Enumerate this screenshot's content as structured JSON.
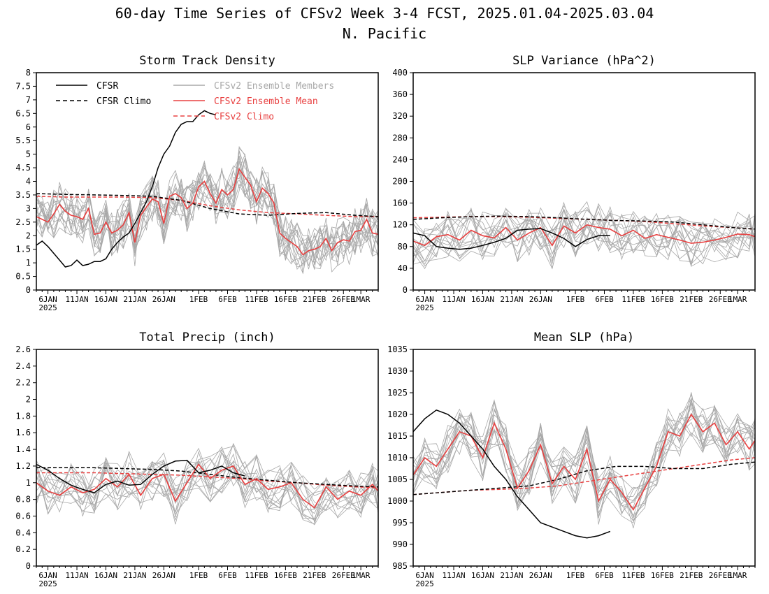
{
  "figure": {
    "title": "60-day Time Series of CFSv2 Week 3-4 FCST, 2025.01.04-2025.03.04",
    "subtitle": "N. Pacific"
  },
  "colors": {
    "cfsr": "#000000",
    "cfsr_climo": "#000000",
    "members": "#a8a8a8",
    "ens_mean": "#e84040",
    "cfsv2_climo": "#e84040"
  },
  "legend": {
    "placement": "top-left of Storm Track Density panel",
    "items": [
      {
        "label": "CFSR",
        "style": "solid",
        "color": "#000000"
      },
      {
        "label": "CFSR Climo",
        "style": "dashed",
        "color": "#000000"
      },
      {
        "label": "CFSv2 Ensemble Members",
        "style": "solid",
        "color": "#a8a8a8"
      },
      {
        "label": "CFSv2 Ensemble Mean",
        "style": "solid",
        "color": "#e84040"
      },
      {
        "label": "CFSv2 Climo",
        "style": "dashed",
        "color": "#e84040"
      }
    ]
  },
  "x_axis": {
    "year_label": "2025",
    "tick_labels": [
      "6JAN",
      "11JAN",
      "16JAN",
      "21JAN",
      "26JAN",
      "1FEB",
      "6FEB",
      "11FEB",
      "16FEB",
      "21FEB",
      "26FEB",
      "1MAR"
    ],
    "tick_days": [
      2,
      7,
      12,
      17,
      22,
      28,
      33,
      38,
      43,
      48,
      53,
      56
    ]
  },
  "chart_data": [
    {
      "type": "line",
      "title": "Storm Track Density",
      "ylim": [
        0,
        8
      ],
      "yticks": [
        "0",
        "0.5",
        "1",
        "1.5",
        "2",
        "2.5",
        "3",
        "3.5",
        "4",
        "4.5",
        "5",
        "5.5",
        "6",
        "6.5",
        "7",
        "7.5",
        "8"
      ],
      "xlim": [
        0,
        59
      ],
      "series": [
        {
          "name": "CFSR",
          "x": [
            0,
            1,
            2,
            3,
            4,
            5,
            6,
            7,
            8,
            9,
            10,
            11,
            12,
            13,
            14,
            15,
            16,
            17,
            18,
            19,
            20,
            21,
            22,
            23,
            24,
            25,
            26,
            27,
            28,
            29,
            30,
            31
          ],
          "y": [
            1.65,
            1.8,
            1.6,
            1.35,
            1.1,
            0.85,
            0.9,
            1.1,
            0.9,
            0.95,
            1.05,
            1.05,
            1.15,
            1.5,
            1.75,
            1.95,
            2.1,
            2.45,
            2.85,
            3.25,
            3.8,
            4.5,
            5.0,
            5.3,
            5.8,
            6.1,
            6.2,
            6.2,
            6.45,
            6.6,
            6.5,
            6.45
          ]
        },
        {
          "name": "CFSR Climo",
          "x": [
            0,
            5,
            10,
            15,
            20,
            25,
            30,
            35,
            40,
            45,
            50,
            55,
            59
          ],
          "y": [
            3.55,
            3.52,
            3.5,
            3.48,
            3.45,
            3.3,
            3.0,
            2.8,
            2.75,
            2.82,
            2.85,
            2.75,
            2.7
          ]
        },
        {
          "name": "CFSv2 Ensemble Mean",
          "x": [
            0,
            1,
            2,
            3,
            4,
            5,
            6,
            7,
            8,
            9,
            10,
            11,
            12,
            13,
            14,
            15,
            16,
            17,
            18,
            19,
            20,
            21,
            22,
            23,
            24,
            25,
            26,
            27,
            28,
            29,
            30,
            31,
            32,
            33,
            34,
            35,
            36,
            37,
            38,
            39,
            40,
            41,
            42,
            43,
            44,
            45,
            46,
            47,
            48,
            49,
            50,
            51,
            52,
            53,
            54,
            55,
            56,
            57,
            58,
            59
          ],
          "y": [
            2.7,
            2.6,
            2.5,
            2.8,
            3.15,
            2.9,
            2.75,
            2.7,
            2.6,
            3.0,
            2.05,
            2.1,
            2.5,
            2.1,
            2.2,
            2.4,
            2.85,
            1.75,
            2.75,
            3.05,
            3.35,
            3.25,
            2.45,
            3.45,
            3.55,
            3.4,
            3.0,
            3.2,
            3.8,
            4.0,
            3.55,
            3.2,
            3.7,
            3.5,
            3.7,
            4.45,
            4.15,
            3.85,
            3.25,
            3.75,
            3.55,
            3.2,
            2.1,
            1.9,
            1.75,
            1.6,
            1.3,
            1.45,
            1.5,
            1.6,
            1.9,
            1.45,
            1.75,
            1.85,
            1.8,
            2.15,
            2.2,
            2.6,
            2.1,
            2.05
          ]
        },
        {
          "name": "CFSv2 Climo",
          "x": [
            0,
            5,
            10,
            15,
            20,
            25,
            30,
            35,
            40,
            45,
            50,
            55,
            59
          ],
          "y": [
            3.45,
            3.42,
            3.42,
            3.42,
            3.4,
            3.3,
            3.1,
            2.95,
            2.85,
            2.8,
            2.75,
            2.7,
            2.7
          ]
        }
      ]
    },
    {
      "type": "line",
      "title": "SLP Variance (hPa^2)",
      "ylim": [
        0,
        400
      ],
      "yticks": [
        "0",
        "40",
        "80",
        "120",
        "160",
        "200",
        "240",
        "280",
        "320",
        "360",
        "400"
      ],
      "xlim": [
        0,
        59
      ],
      "series": [
        {
          "name": "CFSR",
          "x": [
            0,
            2,
            4,
            6,
            8,
            10,
            12,
            14,
            16,
            18,
            20,
            22,
            24,
            26,
            28,
            30,
            32,
            34
          ],
          "y": [
            105,
            100,
            80,
            77,
            75,
            77,
            82,
            88,
            95,
            110,
            112,
            113,
            105,
            95,
            80,
            93,
            100,
            100
          ]
        },
        {
          "name": "CFSR Climo",
          "x": [
            0,
            5,
            10,
            15,
            20,
            25,
            30,
            35,
            40,
            45,
            50,
            55,
            59
          ],
          "y": [
            130,
            133,
            135,
            136,
            135,
            133,
            130,
            128,
            127,
            125,
            120,
            115,
            112
          ]
        },
        {
          "name": "CFSv2 Ensemble Mean",
          "x": [
            0,
            2,
            4,
            6,
            8,
            10,
            12,
            14,
            16,
            18,
            20,
            22,
            24,
            26,
            28,
            30,
            32,
            34,
            36,
            38,
            40,
            42,
            44,
            46,
            48,
            50,
            52,
            54,
            56,
            58,
            59
          ],
          "y": [
            90,
            82,
            98,
            102,
            92,
            110,
            100,
            96,
            115,
            92,
            105,
            115,
            82,
            118,
            105,
            120,
            115,
            112,
            100,
            110,
            95,
            102,
            97,
            92,
            86,
            88,
            92,
            97,
            103,
            102,
            98
          ]
        },
        {
          "name": "CFSv2 Climo",
          "x": [
            0,
            5,
            10,
            15,
            20,
            25,
            30,
            35,
            40,
            45,
            50,
            55,
            59
          ],
          "y": [
            133,
            134,
            135,
            135,
            134,
            132,
            130,
            128,
            126,
            122,
            118,
            115,
            112
          ]
        }
      ]
    },
    {
      "type": "line",
      "title": "Total Precip (inch)",
      "ylim": [
        0,
        2.6
      ],
      "yticks": [
        "0",
        "0.2",
        "0.4",
        "0.6",
        "0.8",
        "1",
        "1.2",
        "1.4",
        "1.6",
        "1.8",
        "2",
        "2.2",
        "2.4",
        "2.6"
      ],
      "xlim": [
        0,
        59
      ],
      "series": [
        {
          "name": "CFSR",
          "x": [
            0,
            2,
            4,
            6,
            8,
            10,
            12,
            14,
            16,
            18,
            20,
            22,
            24,
            26,
            28,
            30,
            32,
            34,
            36
          ],
          "y": [
            1.22,
            1.15,
            1.05,
            0.97,
            0.92,
            0.88,
            0.98,
            1.02,
            0.97,
            0.98,
            1.1,
            1.2,
            1.26,
            1.27,
            1.12,
            1.15,
            1.2,
            1.12,
            1.08
          ]
        },
        {
          "name": "CFSR Climo",
          "x": [
            0,
            5,
            10,
            15,
            20,
            25,
            30,
            35,
            40,
            45,
            50,
            55,
            59
          ],
          "y": [
            1.18,
            1.18,
            1.18,
            1.17,
            1.16,
            1.14,
            1.1,
            1.06,
            1.03,
            1.0,
            0.98,
            0.96,
            0.95
          ]
        },
        {
          "name": "CFSv2 Ensemble Mean",
          "x": [
            0,
            2,
            4,
            6,
            8,
            10,
            12,
            14,
            16,
            18,
            20,
            22,
            24,
            26,
            28,
            30,
            32,
            34,
            36,
            38,
            40,
            42,
            44,
            46,
            48,
            50,
            52,
            54,
            56,
            58,
            59
          ],
          "y": [
            1.0,
            0.9,
            0.85,
            0.95,
            0.88,
            0.92,
            1.05,
            0.95,
            1.1,
            0.85,
            1.05,
            1.1,
            0.78,
            1.0,
            1.22,
            1.05,
            1.15,
            1.2,
            0.98,
            1.05,
            0.92,
            0.95,
            1.0,
            0.8,
            0.7,
            0.95,
            0.8,
            0.9,
            0.85,
            0.98,
            0.9
          ]
        },
        {
          "name": "CFSv2 Climo",
          "x": [
            0,
            5,
            10,
            15,
            20,
            25,
            30,
            35,
            40,
            45,
            50,
            55,
            59
          ],
          "y": [
            1.12,
            1.12,
            1.12,
            1.11,
            1.1,
            1.09,
            1.07,
            1.05,
            1.02,
            1.0,
            0.97,
            0.95,
            0.94
          ]
        }
      ]
    },
    {
      "type": "line",
      "title": "Mean SLP (hPa)",
      "ylim": [
        985,
        1035
      ],
      "yticks": [
        "985",
        "990",
        "995",
        "1000",
        "1005",
        "1010",
        "1015",
        "1020",
        "1025",
        "1030",
        "1035"
      ],
      "xlim": [
        0,
        59
      ],
      "series": [
        {
          "name": "CFSR",
          "x": [
            0,
            2,
            4,
            6,
            8,
            10,
            12,
            14,
            16,
            18,
            20,
            22,
            24,
            26,
            28,
            30,
            32,
            34
          ],
          "y": [
            1016,
            1019,
            1021,
            1020,
            1018,
            1015,
            1012,
            1008,
            1005,
            1001,
            998,
            995,
            994,
            993,
            992,
            991.5,
            992,
            993
          ]
        },
        {
          "name": "CFSR Climo",
          "x": [
            0,
            5,
            10,
            15,
            20,
            25,
            30,
            35,
            40,
            45,
            50,
            55,
            59
          ],
          "y": [
            1001.5,
            1002,
            1002.5,
            1003,
            1003.5,
            1005,
            1007,
            1008,
            1008,
            1007.5,
            1007.5,
            1008.5,
            1009
          ]
        },
        {
          "name": "CFSv2 Ensemble Mean",
          "x": [
            0,
            2,
            4,
            6,
            8,
            10,
            12,
            14,
            16,
            18,
            20,
            22,
            24,
            26,
            28,
            30,
            32,
            34,
            36,
            38,
            40,
            42,
            44,
            46,
            48,
            50,
            52,
            54,
            56,
            58,
            59
          ],
          "y": [
            1006,
            1010,
            1008,
            1012,
            1016,
            1015,
            1010,
            1018,
            1012,
            1003,
            1007,
            1013,
            1004,
            1008,
            1005,
            1012,
            1000,
            1005,
            1002,
            998,
            1003,
            1008,
            1016,
            1015,
            1020,
            1016,
            1018,
            1013,
            1016,
            1012,
            1014
          ]
        },
        {
          "name": "CFSv2 Climo",
          "x": [
            0,
            5,
            10,
            15,
            20,
            25,
            30,
            35,
            40,
            45,
            50,
            55,
            59
          ],
          "y": [
            1001.5,
            1002,
            1002.5,
            1002.7,
            1003,
            1003.5,
            1004.5,
            1005.5,
            1006.5,
            1007.5,
            1008.5,
            1009.5,
            1010
          ]
        }
      ]
    }
  ]
}
